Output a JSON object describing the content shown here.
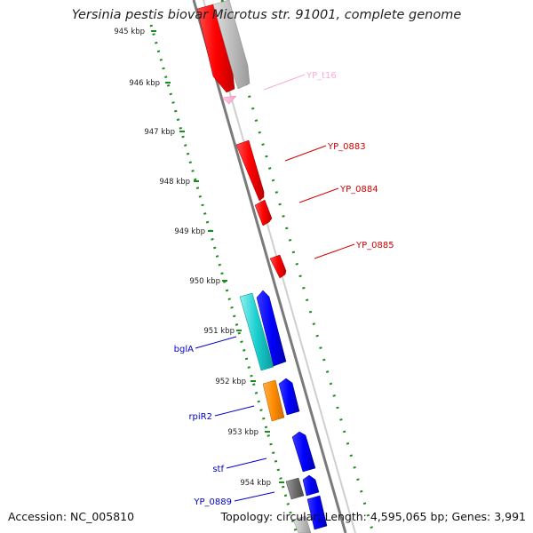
{
  "title": "Yersinia pestis biovar Microtus str. 91001, complete genome",
  "footer": {
    "accession": "Accession: NC_005810",
    "topology": "Topology: circular; Length: 4,595,065 bp; Genes: 3,991"
  },
  "colors": {
    "forward_gene": "#ff0000",
    "reverse_gene": "#0000ff",
    "trna": "#ffaad4",
    "pseudo": "#b0b0b0",
    "cyan_gene": "#19cfcf",
    "orange_gene": "#ff8c00",
    "gray_gene": "#707070",
    "ruler_ticks": "#1e8c1e",
    "backbone": "#888888"
  },
  "ruler": {
    "ticks": [
      "945 kbp",
      "946 kbp",
      "947 kbp",
      "948 kbp",
      "949 kbp",
      "950 kbp",
      "951 kbp",
      "952 kbp",
      "953 kbp",
      "954 kbp"
    ]
  },
  "gene_labels": {
    "top": [
      {
        "name": "YP_t16",
        "color": "#ffaad4"
      },
      {
        "name": "YP_0883",
        "color": "#d40000"
      },
      {
        "name": "YP_0884",
        "color": "#d40000"
      },
      {
        "name": "YP_0885",
        "color": "#d40000"
      }
    ],
    "bottom": [
      {
        "name": "bglA",
        "color": "#0000cc"
      },
      {
        "name": "rpiR2",
        "color": "#0000cc"
      },
      {
        "name": "stf",
        "color": "#0000cc"
      },
      {
        "name": "YP_0889",
        "color": "#0000cc"
      }
    ]
  }
}
